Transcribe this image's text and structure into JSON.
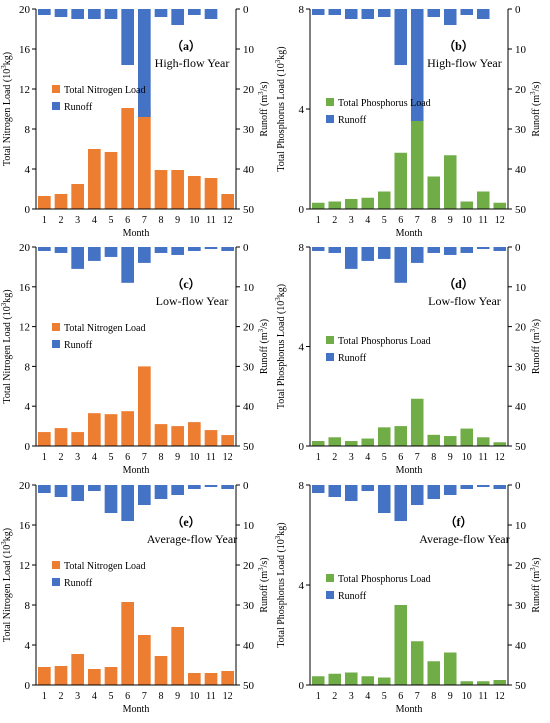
{
  "colors": {
    "nitrogen": "#ED7D31",
    "phosphorus": "#70AD47",
    "runoff": "#4472C4",
    "axis": "#000000"
  },
  "chart_data": [
    {
      "panel": "a",
      "panel_label": "（a）",
      "subtitle": "High-flow Year",
      "type": "bar",
      "categories": [
        "1",
        "2",
        "3",
        "4",
        "5",
        "6",
        "7",
        "8",
        "9",
        "10",
        "11",
        "12"
      ],
      "xlabel": "Month",
      "ylabel": "Total Nitrogen Load (10³kg)",
      "y2label": "Runoff (m³/s)",
      "ylim": [
        0,
        20
      ],
      "yticks": [
        "0",
        "4",
        "8",
        "12",
        "16",
        "20"
      ],
      "y2lim": [
        0,
        50
      ],
      "y2ticks": [
        "0",
        "10",
        "20",
        "30",
        "40",
        "50"
      ],
      "y2_inverted": true,
      "series": [
        {
          "name": "Total Nitrogen Load",
          "kind": "load",
          "values": [
            1.3,
            1.5,
            2.5,
            6.0,
            5.7,
            10.1,
            10.1,
            3.9,
            3.9,
            3.3,
            3.1,
            1.5
          ]
        },
        {
          "name": "Runoff",
          "kind": "runoff",
          "values": [
            1.5,
            2,
            2.5,
            2.5,
            2.5,
            14,
            27,
            2,
            4,
            1.5,
            2.5,
            0
          ]
        }
      ]
    },
    {
      "panel": "b",
      "panel_label": "（b）",
      "subtitle": "High-flow Year",
      "type": "bar",
      "categories": [
        "1",
        "2",
        "3",
        "4",
        "5",
        "6",
        "7",
        "8",
        "9",
        "10",
        "11",
        "12"
      ],
      "xlabel": "Month",
      "ylabel": "Total Phosphorus Load (10³kg)",
      "y2label": "Runoff (m³/s)",
      "ylim": [
        0,
        8
      ],
      "yticks": [
        "0",
        "4",
        "8"
      ],
      "y2lim": [
        0,
        50
      ],
      "y2ticks": [
        "0",
        "10",
        "20",
        "30",
        "40",
        "50"
      ],
      "y2_inverted": true,
      "series": [
        {
          "name": "Total Phosphorus Load",
          "kind": "load",
          "values": [
            0.25,
            0.3,
            0.4,
            0.45,
            0.7,
            2.25,
            3.55,
            1.3,
            2.15,
            0.3,
            0.7,
            0.25
          ]
        },
        {
          "name": "Runoff",
          "kind": "runoff",
          "values": [
            1.5,
            1.5,
            2.5,
            2.5,
            2,
            14,
            28,
            2,
            4,
            1.5,
            2.5,
            0
          ]
        }
      ]
    },
    {
      "panel": "c",
      "panel_label": "（c）",
      "subtitle": "Low-flow Year",
      "type": "bar",
      "categories": [
        "1",
        "2",
        "3",
        "4",
        "5",
        "6",
        "7",
        "8",
        "9",
        "10",
        "11",
        "12"
      ],
      "xlabel": "Month",
      "ylabel": "Total Nitrogen Load (10³kg)",
      "y2label": "Runoff (m³/s)",
      "ylim": [
        0,
        20
      ],
      "yticks": [
        "0",
        "4",
        "8",
        "12",
        "16",
        "20"
      ],
      "y2lim": [
        0,
        50
      ],
      "y2ticks": [
        "0",
        "10",
        "20",
        "30",
        "40",
        "50"
      ],
      "y2_inverted": true,
      "series": [
        {
          "name": "Total Nitrogen Load",
          "kind": "load",
          "values": [
            1.4,
            1.8,
            1.4,
            3.3,
            3.2,
            3.5,
            8.0,
            2.2,
            2.0,
            2.4,
            1.6,
            1.1
          ]
        },
        {
          "name": "Runoff",
          "kind": "runoff",
          "values": [
            1,
            1.5,
            5.5,
            3.5,
            2.5,
            9,
            4,
            1.5,
            2,
            1,
            0.5,
            1
          ]
        }
      ]
    },
    {
      "panel": "d",
      "panel_label": "（d）",
      "subtitle": "Low-flow Year",
      "type": "bar",
      "categories": [
        "1",
        "2",
        "3",
        "4",
        "5",
        "6",
        "7",
        "8",
        "9",
        "10",
        "11",
        "12"
      ],
      "xlabel": "Month",
      "ylabel": "Total Phosphorus Load (10³kg)",
      "y2label": "Runoff (m³/s)",
      "ylim": [
        0,
        8
      ],
      "yticks": [
        "0",
        "4",
        "8"
      ],
      "y2lim": [
        0,
        50
      ],
      "y2ticks": [
        "0",
        "10",
        "20",
        "30",
        "40",
        "50"
      ],
      "y2_inverted": true,
      "series": [
        {
          "name": "Total Phosphorus Load",
          "kind": "load",
          "values": [
            0.2,
            0.35,
            0.2,
            0.3,
            0.75,
            0.8,
            1.9,
            0.45,
            0.4,
            0.7,
            0.35,
            0.15
          ]
        },
        {
          "name": "Runoff",
          "kind": "runoff",
          "values": [
            1,
            1.5,
            5.5,
            3.5,
            3,
            9,
            4,
            1.5,
            2,
            1.5,
            0.5,
            1
          ]
        }
      ]
    },
    {
      "panel": "e",
      "panel_label": "（e）",
      "subtitle": "Average-flow Year",
      "type": "bar",
      "categories": [
        "1",
        "2",
        "3",
        "4",
        "5",
        "6",
        "7",
        "8",
        "9",
        "10",
        "11",
        "12"
      ],
      "xlabel": "Month",
      "ylabel": "Total Nitrogen Load (10³kg)",
      "y2label": "Runoff (m³/s)",
      "ylim": [
        0,
        20
      ],
      "yticks": [
        "0",
        "4",
        "8",
        "12",
        "16",
        "20"
      ],
      "y2lim": [
        0,
        50
      ],
      "y2ticks": [
        "0",
        "10",
        "20",
        "30",
        "40",
        "50"
      ],
      "y2_inverted": true,
      "series": [
        {
          "name": "Total Nitrogen Load",
          "kind": "load",
          "values": [
            1.8,
            1.9,
            3.1,
            1.6,
            1.8,
            8.3,
            5.0,
            2.9,
            5.8,
            1.2,
            1.2,
            1.4
          ]
        },
        {
          "name": "Runoff",
          "kind": "runoff",
          "values": [
            2,
            3,
            4,
            1.5,
            7,
            9,
            5,
            3.5,
            2.5,
            1,
            0.5,
            1
          ]
        }
      ]
    },
    {
      "panel": "f",
      "panel_label": "（f）",
      "subtitle": "Average-flow Year",
      "type": "bar",
      "categories": [
        "1",
        "2",
        "3",
        "4",
        "5",
        "6",
        "7",
        "8",
        "9",
        "10",
        "11",
        "12"
      ],
      "xlabel": "Month",
      "ylabel": "Total Phosphorus Load (10³kg)",
      "y2label": "Runoff (m³/s)",
      "ylim": [
        0,
        8
      ],
      "yticks": [
        "0",
        "4",
        "8"
      ],
      "y2lim": [
        0,
        50
      ],
      "y2ticks": [
        "0",
        "10",
        "20",
        "30",
        "40",
        "50"
      ],
      "y2_inverted": true,
      "series": [
        {
          "name": "Total Phosphorus Load",
          "kind": "load",
          "values": [
            0.35,
            0.45,
            0.5,
            0.35,
            0.3,
            3.2,
            1.75,
            0.95,
            1.3,
            0.15,
            0.15,
            0.2
          ]
        },
        {
          "name": "Runoff",
          "kind": "runoff",
          "values": [
            2,
            3,
            4,
            1.5,
            7,
            9,
            5,
            3.5,
            2.5,
            1,
            0.5,
            1
          ]
        }
      ]
    }
  ]
}
